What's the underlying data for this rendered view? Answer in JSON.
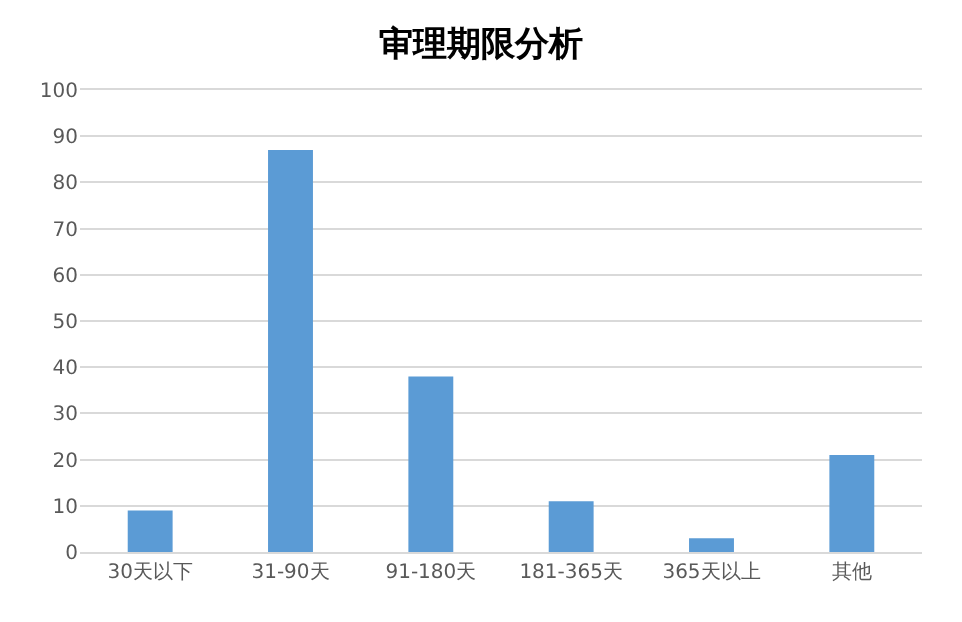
{
  "chart_data": {
    "type": "bar",
    "title": "审理期限分析",
    "categories": [
      "30天以下",
      "31-90天",
      "91-180天",
      "181-365天",
      "365天以上",
      "其他"
    ],
    "values": [
      9,
      87,
      38,
      11,
      3,
      21
    ],
    "color": "#5b9bd5",
    "ylim": [
      0,
      100
    ],
    "yticks": [
      0,
      10,
      20,
      30,
      40,
      50,
      60,
      70,
      80,
      90,
      100
    ],
    "grid": "y"
  }
}
